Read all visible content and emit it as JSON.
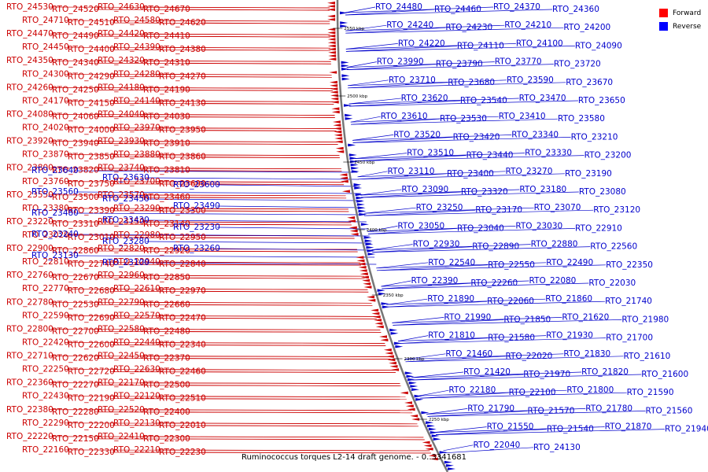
{
  "caption": "Ruminococcus torques L2-14 draft genome. - 0..3341681",
  "legend": [
    {
      "label": "Forward",
      "color": "#ff0000"
    },
    {
      "label": "Reverse",
      "color": "#0000ff"
    }
  ],
  "colors": {
    "forward": "#cc0000",
    "reverse": "#0000cc",
    "backbone": "#888888"
  },
  "ticks": [
    "2550 kbp",
    "2500 kbp",
    "2450 kbp",
    "2400 kbp",
    "2350 kbp",
    "2300 kbp",
    "2250 kbp"
  ],
  "forward_labels": [
    "RTO_24530",
    "RTO_24520",
    "RTO_24630",
    "RTO_24670",
    "RTO_24710",
    "RTO_24510",
    "RTO_24580",
    "RTO_24620",
    "RTO_24470",
    "RTO_24490",
    "RTO_24420",
    "RTO_24410",
    "RTO_24450",
    "RTO_24400",
    "RTO_24390",
    "RTO_24380",
    "RTO_24350",
    "RTO_24340",
    "RTO_24320",
    "RTO_24310",
    "RTO_24300",
    "RTO_24290",
    "RTO_24280",
    "RTO_24270",
    "RTO_24260",
    "RTO_24250",
    "RTO_24180",
    "RTO_24190",
    "RTO_24170",
    "RTO_24150",
    "RTO_24140",
    "RTO_24130",
    "RTO_24080",
    "RTO_24060",
    "RTO_24040",
    "RTO_24030",
    "RTO_24020",
    "RTO_24000",
    "RTO_23970",
    "RTO_23950",
    "RTO_23920",
    "RTO_23940",
    "RTO_23930",
    "RTO_23910",
    "RTO_23870",
    "RTO_23850",
    "RTO_23880",
    "RTO_23860",
    "RTO_23800",
    "RTO_23820",
    "RTO_23740",
    "RTO_23810",
    "RTO_23760",
    "RTO_23750",
    "RTO_23700",
    "RTO_23690",
    "RTO_23550",
    "RTO_23500",
    "RTO_23570",
    "RTO_23460",
    "RTO_23380",
    "RTO_23390",
    "RTO_23290",
    "RTO_23300",
    "RTO_23220",
    "RTO_23310",
    "RTO_23150",
    "RTO_23140",
    "RTO_23020",
    "RTO_23010",
    "RTO_22980",
    "RTO_22950",
    "RTO_22900",
    "RTO_22860",
    "RTO_22820",
    "RTO_22920",
    "RTO_22810",
    "RTO_22740",
    "RTO_22940",
    "RTO_22840",
    "RTO_22760",
    "RTO_22670",
    "RTO_22960",
    "RTO_22850",
    "RTO_22770",
    "RTO_22680",
    "RTO_22610",
    "RTO_22970",
    "RTO_22780",
    "RTO_22530",
    "RTO_22790",
    "RTO_22660",
    "RTO_22590",
    "RTO_22690",
    "RTO_22570",
    "RTO_22470",
    "RTO_22800",
    "RTO_22700",
    "RTO_22580",
    "RTO_22480",
    "RTO_22420",
    "RTO_22600",
    "RTO_22440",
    "RTO_22340",
    "RTO_22710",
    "RTO_22620",
    "RTO_22450",
    "RTO_22370",
    "RTO_22250",
    "RTO_22720",
    "RTO_22630",
    "RTO_22460",
    "RTO_22360",
    "RTO_22270",
    "RTO_22170",
    "RTO_22500",
    "RTO_22430",
    "RTO_22190",
    "RTO_22120",
    "RTO_22510",
    "RTO_22380",
    "RTO_22280",
    "RTO_22520",
    "RTO_22400",
    "RTO_22290",
    "RTO_22200",
    "RTO_22130",
    "RTO_22010",
    "RTO_22220",
    "RTO_22150",
    "RTO_22410",
    "RTO_22300",
    "RTO_22160",
    "RTO_22330",
    "RTO_22210",
    "RTO_22230"
  ],
  "reverse_labels": [
    "RTO_24480",
    "RTO_24460",
    "RTO_24370",
    "RTO_24360",
    "RTO_24240",
    "RTO_24230",
    "RTO_24210",
    "RTO_24200",
    "RTO_24220",
    "RTO_24110",
    "RTO_24100",
    "RTO_24090",
    "RTO_23990",
    "RTO_23790",
    "RTO_23770",
    "RTO_23720",
    "RTO_23710",
    "RTO_23680",
    "RTO_23590",
    "RTO_23670",
    "RTO_23620",
    "RTO_23540",
    "RTO_23470",
    "RTO_23650",
    "RTO_23610",
    "RTO_23530",
    "RTO_23410",
    "RTO_23580",
    "RTO_23520",
    "RTO_23420",
    "RTO_23340",
    "RTO_23210",
    "RTO_23510",
    "RTO_23440",
    "RTO_23330",
    "RTO_23200",
    "RTO_23110",
    "RTO_23400",
    "RTO_23270",
    "RTO_23190",
    "RTO_23090",
    "RTO_23320",
    "RTO_23180",
    "RTO_23080",
    "RTO_23250",
    "RTO_23170",
    "RTO_23070",
    "RTO_23120",
    "RTO_23050",
    "RTO_23040",
    "RTO_23030",
    "RTO_22910",
    "RTO_22930",
    "RTO_22890",
    "RTO_22880",
    "RTO_22560",
    "RTO_22540",
    "RTO_22550",
    "RTO_22490",
    "RTO_22350",
    "RTO_22390",
    "RTO_22260",
    "RTO_22080",
    "RTO_22030",
    "RTO_21890",
    "RTO_22060",
    "RTO_21860",
    "RTO_21740",
    "RTO_21990",
    "RTO_21850",
    "RTO_21620",
    "RTO_21980",
    "RTO_21810",
    "RTO_21580",
    "RTO_21930",
    "RTO_21700",
    "RTO_21460",
    "RTO_22020",
    "RTO_21830",
    "RTO_21610",
    "RTO_21420",
    "RTO_21970",
    "RTO_21820",
    "RTO_21600",
    "RTO_22180",
    "RTO_22100",
    "RTO_21800",
    "RTO_21590",
    "RTO_21790",
    "RTO_21570",
    "RTO_21780",
    "RTO_21560",
    "RTO_21550",
    "RTO_21540",
    "RTO_21870",
    "RTO_21940",
    "RTO_22040",
    "RTO_24130"
  ],
  "scattered_blue": [
    "RTO_23640",
    "RTO_23630",
    "RTO_23600",
    "RTO_23560",
    "RTO_23450",
    "RTO_23490",
    "RTO_23480",
    "RTO_23430",
    "RTO_23230",
    "RTO_23240",
    "RTO_23280",
    "RTO_23260",
    "RTO_23130",
    "RTO_23100"
  ]
}
